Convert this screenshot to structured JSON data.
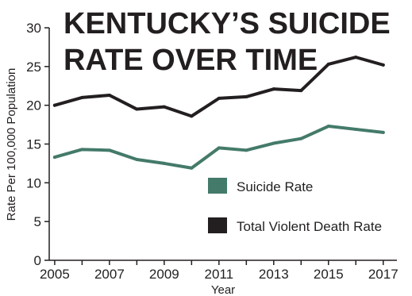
{
  "chart_data": {
    "type": "line",
    "title_lines": [
      "KENTUCKY’S SUICIDE",
      "RATE OVER TIME"
    ],
    "xlabel": "Year",
    "ylabel": "Rate Per 100,000 Population",
    "x": [
      2005,
      2006,
      2007,
      2008,
      2009,
      2010,
      2011,
      2012,
      2013,
      2014,
      2015,
      2016,
      2017
    ],
    "xlim": [
      2004.8,
      2017.5
    ],
    "ylim": [
      0,
      30
    ],
    "x_ticks": [
      "2005",
      "2007",
      "2009",
      "2011",
      "2013",
      "2015",
      "2017"
    ],
    "y_ticks": [
      "0",
      "5",
      "10",
      "15",
      "20",
      "25",
      "30"
    ],
    "grid": false,
    "series": [
      {
        "name": "Suicide Rate",
        "color": "#447a6a",
        "values": [
          13.3,
          14.3,
          14.2,
          13.0,
          12.5,
          11.9,
          14.5,
          14.2,
          15.1,
          15.7,
          17.3,
          16.9,
          16.5
        ]
      },
      {
        "name": "Total Violent Death Rate",
        "color": "#231f20",
        "values": [
          20.0,
          21.0,
          21.3,
          19.5,
          19.8,
          18.6,
          20.9,
          21.1,
          22.1,
          21.9,
          25.3,
          26.2,
          25.2
        ]
      }
    ],
    "legend": {
      "placement": "lower-right",
      "entries": [
        "Suicide Rate",
        "Total Violent Death Rate"
      ]
    }
  }
}
